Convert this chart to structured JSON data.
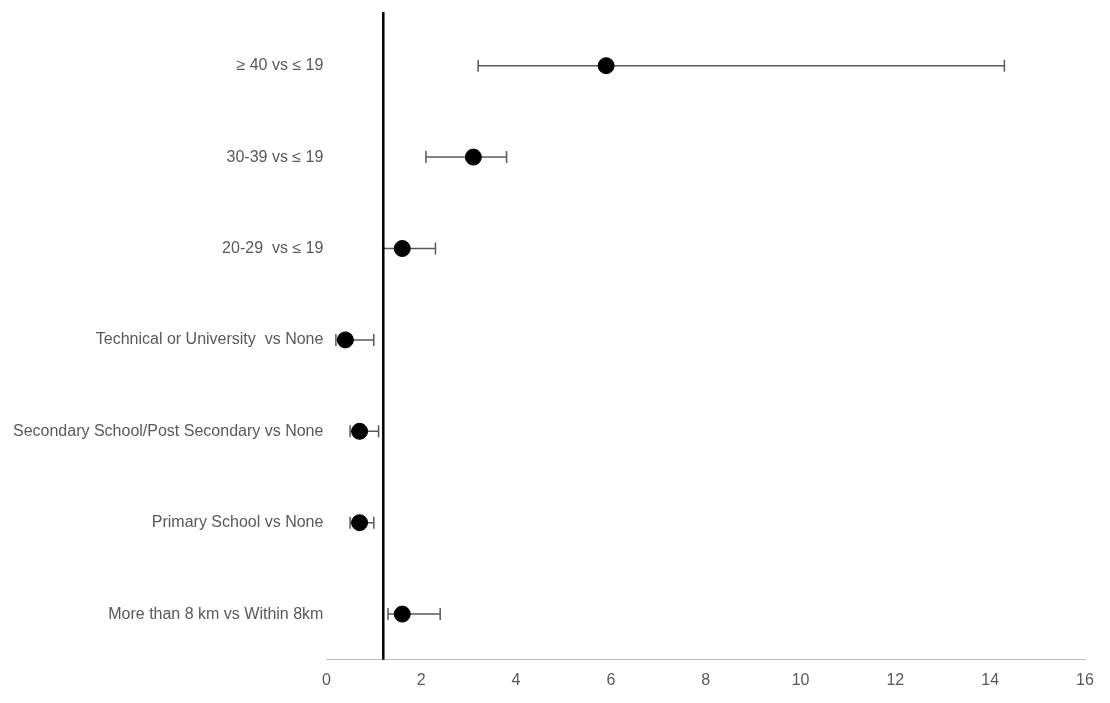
{
  "chart_data": {
    "type": "scatter",
    "orientation": "horizontal",
    "categories": [
      "≥ 40 vs ≤ 19",
      "30-39 vs ≤ 19",
      "20-29  vs ≤ 19",
      "Technical or University  vs None",
      "Secondary School/Post Secondary vs None",
      "Primary School vs None",
      "More than 8 km vs Within 8km"
    ],
    "values": [
      5.9,
      3.1,
      1.6,
      0.4,
      0.7,
      0.7,
      1.6
    ],
    "errors": [
      [
        3.2,
        14.3
      ],
      [
        2.1,
        3.8
      ],
      [
        1.2,
        2.3
      ],
      [
        0.2,
        1.0
      ],
      [
        0.5,
        1.1
      ],
      [
        0.5,
        1.0
      ],
      [
        1.3,
        2.4
      ]
    ],
    "color": "#000000",
    "marker": "circle",
    "grid": false,
    "xlim": [
      0,
      16
    ],
    "xticks": [
      0,
      2,
      4,
      6,
      8,
      10,
      12,
      14,
      16
    ],
    "ref_lines": [
      {
        "axis": "x",
        "value": 1.2,
        "color": "#000000"
      }
    ]
  }
}
